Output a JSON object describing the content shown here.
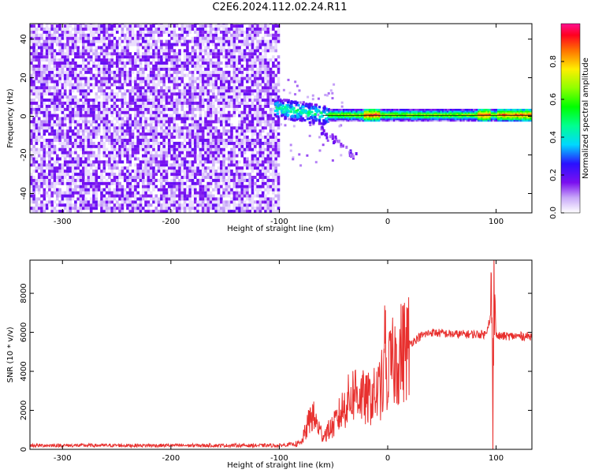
{
  "title": "C2E6.2024.112.02.24.R11",
  "chart_data": [
    {
      "type": "heatmap",
      "title": "C2E6.2024.112.02.24.R11",
      "xlabel": "Height of straight line (km)",
      "ylabel": "Frequency (Hz)",
      "xlim": [
        -330,
        133
      ],
      "ylim": [
        -50,
        48
      ],
      "xticks": [
        -300,
        -200,
        -100,
        0,
        100
      ],
      "yticks": [
        -40,
        -20,
        0,
        20,
        40
      ],
      "colorbar": {
        "label": "Normalized spectral amplitude",
        "range": [
          0,
          1
        ],
        "ticks": [
          "0.0",
          "0.2",
          "0.4",
          "0.6",
          "0.8"
        ]
      },
      "regions": [
        {
          "name": "broadband noise",
          "x_range": [
            -330,
            -100
          ],
          "y_range": [
            -50,
            48
          ],
          "amplitude": 0.1
        },
        {
          "name": "tone onset",
          "x_range": [
            -105,
            -55
          ],
          "frequency_Hz": 5,
          "amplitude": 0.4
        },
        {
          "name": "tone",
          "x_range": [
            -55,
            133
          ],
          "frequency_Hz": 0.5,
          "amplitude": 0.7
        },
        {
          "name": "descending branch",
          "x_range": [
            -65,
            -30
          ],
          "y_range": [
            -20,
            -5
          ],
          "amplitude": 0.1
        }
      ]
    },
    {
      "type": "line",
      "xlabel": "Height of straight line (km)",
      "ylabel": "SNR (10 * v/v)",
      "xlim": [
        -330,
        133
      ],
      "ylim": [
        0,
        9700
      ],
      "xticks": [
        -300,
        -200,
        -100,
        0,
        100
      ],
      "yticks": [
        0,
        2000,
        4000,
        6000,
        8000
      ],
      "color": "#e8302e",
      "series": [
        {
          "x": [
            -330,
            -200,
            -100,
            -80,
            -70,
            -60,
            -50,
            -40,
            -30,
            -20,
            -10,
            0,
            10,
            20,
            30,
            40,
            60,
            80,
            90,
            96,
            97,
            98,
            100,
            110,
            133
          ],
          "y": [
            200,
            200,
            200,
            300,
            1800,
            700,
            1200,
            2200,
            3000,
            2500,
            2800,
            4000,
            4800,
            5400,
            5800,
            6000,
            5900,
            5900,
            5900,
            7000,
            200,
            9500,
            5800,
            5800,
            5800
          ]
        }
      ]
    }
  ]
}
